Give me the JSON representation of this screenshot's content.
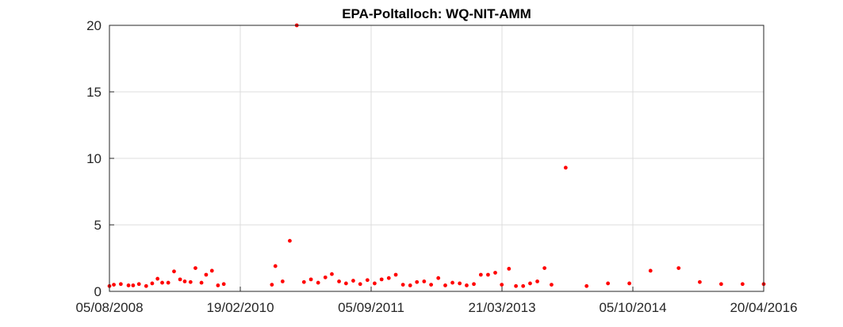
{
  "chart_data": {
    "type": "scatter",
    "title": "EPA-Poltalloch: WQ-NIT-AMM",
    "xlabel": "",
    "ylabel": "",
    "x_axis_type": "date",
    "xlim": [
      "2008-08-05",
      "2016-04-20"
    ],
    "ylim": [
      0,
      20
    ],
    "x_ticks": [
      "2008-08-05",
      "2010-02-19",
      "2011-09-05",
      "2013-03-21",
      "2014-10-05",
      "2016-04-20"
    ],
    "x_tick_labels": [
      "05/08/2008",
      "19/02/2010",
      "05/09/2011",
      "21/03/2013",
      "05/10/2014",
      "20/04/2016"
    ],
    "y_ticks": [
      0,
      5,
      10,
      15,
      20
    ],
    "y_tick_labels": [
      "0",
      "5",
      "10",
      "15",
      "20"
    ],
    "grid": true,
    "marker_color": "#ff0000",
    "series": [
      {
        "x": [
          "2008-08-05",
          "2008-08-24",
          "2008-09-23",
          "2008-10-26",
          "2008-11-15",
          "2008-12-10",
          "2009-01-10",
          "2009-02-05",
          "2009-02-28",
          "2009-03-20",
          "2009-04-15",
          "2009-05-10",
          "2009-06-05",
          "2009-06-25",
          "2009-07-20",
          "2009-08-10",
          "2009-09-05",
          "2009-09-25",
          "2009-10-20",
          "2009-11-15",
          "2009-12-10",
          "2010-07-05",
          "2010-07-20",
          "2010-08-20",
          "2010-09-20",
          "2010-10-20",
          "2010-11-20",
          "2010-12-20",
          "2011-01-20",
          "2011-02-20",
          "2011-03-20",
          "2011-04-20",
          "2011-05-20",
          "2011-06-20",
          "2011-07-20",
          "2011-08-20",
          "2011-09-20",
          "2011-10-20",
          "2011-11-20",
          "2011-12-20",
          "2012-01-20",
          "2012-02-20",
          "2012-03-20",
          "2012-04-20",
          "2012-05-20",
          "2012-06-20",
          "2012-07-20",
          "2012-08-20",
          "2012-09-20",
          "2012-10-20",
          "2012-11-20",
          "2012-12-20",
          "2013-01-20",
          "2013-02-20",
          "2013-03-20",
          "2013-04-20",
          "2013-05-20",
          "2013-06-20",
          "2013-07-20",
          "2013-08-20",
          "2013-09-20",
          "2013-10-20",
          "2013-12-20",
          "2014-03-20",
          "2014-06-20",
          "2014-09-20",
          "2014-12-20",
          "2015-04-20",
          "2015-07-20",
          "2015-10-20",
          "2016-01-20",
          "2016-04-20"
        ],
        "y": [
          0.4,
          0.5,
          0.55,
          0.45,
          0.45,
          0.55,
          0.4,
          0.6,
          0.95,
          0.65,
          0.65,
          1.5,
          0.9,
          0.75,
          0.7,
          1.75,
          0.65,
          1.25,
          1.55,
          0.45,
          0.55,
          0.5,
          1.9,
          0.75,
          3.8,
          20.0,
          0.7,
          0.9,
          0.65,
          1.05,
          1.3,
          0.75,
          0.6,
          0.8,
          0.55,
          0.85,
          0.6,
          0.9,
          1.0,
          1.25,
          0.5,
          0.45,
          0.7,
          0.75,
          0.5,
          1.0,
          0.45,
          0.65,
          0.6,
          0.45,
          0.55,
          1.25,
          1.25,
          1.4,
          0.5,
          1.7,
          0.4,
          0.4,
          0.6,
          0.75,
          1.75,
          0.5,
          9.3,
          0.4,
          0.6,
          0.6,
          1.55,
          1.75,
          0.7,
          0.55,
          0.55,
          0.55
        ]
      }
    ]
  }
}
